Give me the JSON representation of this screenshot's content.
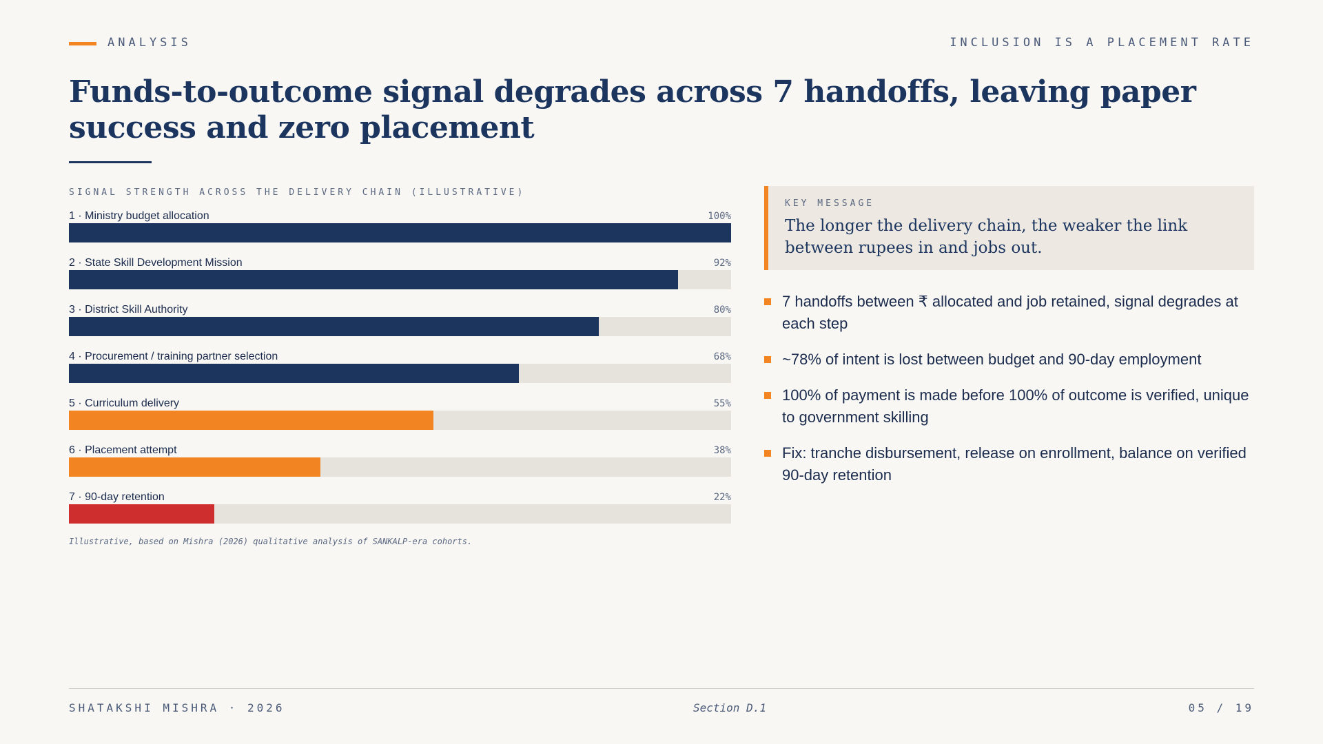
{
  "header": {
    "section_label": "ANALYSIS",
    "deck_topic": "INCLUSION IS A PLACEMENT RATE"
  },
  "title": "Funds-to-outcome signal degrades across 7 handoffs, leaving paper success and zero placement",
  "chart_data": {
    "type": "bar",
    "orientation": "horizontal",
    "title": "SIGNAL STRENGTH ACROSS THE DELIVERY CHAIN (ILLUSTRATIVE)",
    "xlim": [
      0,
      100
    ],
    "unit": "%",
    "categories": [
      "1 · Ministry budget allocation",
      "2 · State Skill Development Mission",
      "3 · District Skill Authority",
      "4 · Procurement / training partner selection",
      "5 · Curriculum delivery",
      "6 · Placement attempt",
      "7 · 90-day retention"
    ],
    "values": [
      100,
      92,
      80,
      68,
      55,
      38,
      22
    ],
    "value_labels": [
      "100%",
      "92%",
      "80%",
      "68%",
      "55%",
      "38%",
      "22%"
    ],
    "bar_colors": [
      "#1b355f",
      "#1b355f",
      "#1b355f",
      "#1b355f",
      "#f28522",
      "#f28522",
      "#cf2e2e"
    ],
    "note": "Illustrative, based on Mishra (2026) qualitative analysis of SANKALP-era cohorts."
  },
  "key_message": {
    "label": "KEY MESSAGE",
    "text": "The longer the delivery chain, the weaker the link between rupees in and jobs out."
  },
  "bullets": [
    "7 handoffs between ₹ allocated and job retained, signal degrades at each step",
    "~78% of intent is lost between budget and 90-day employment",
    "100% of payment is made before 100% of outcome is verified, unique to government skilling",
    "Fix: tranche disbursement, release on enrollment, balance on verified 90-day retention"
  ],
  "footer": {
    "author": "SHATAKSHI MISHRA · 2026",
    "section": "Section D.1",
    "page": "05 / 19"
  },
  "colors": {
    "navy": "#1b355f",
    "orange": "#f28522",
    "red": "#cf2e2e",
    "track": "#e6e2dc",
    "background": "#f8f7f4"
  }
}
